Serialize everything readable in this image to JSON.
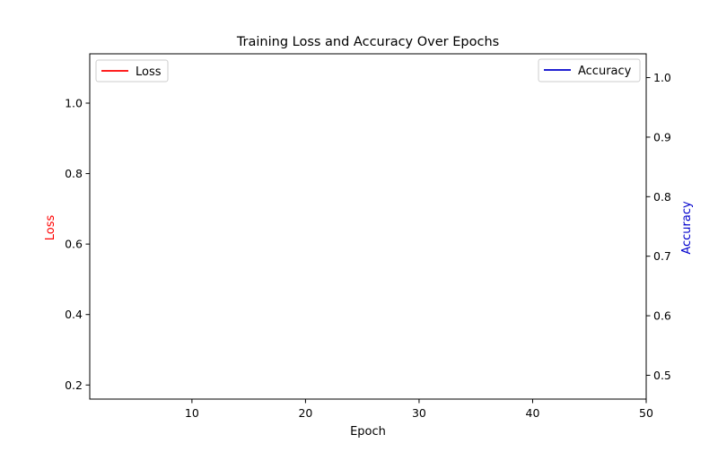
{
  "chart_data": {
    "type": "line",
    "title": "Training Loss and Accuracy Over Epochs",
    "xlabel": "Epoch",
    "xlim": [
      1,
      50
    ],
    "xticks": [
      10,
      20,
      30,
      40,
      50
    ],
    "left_axis": {
      "label": "Loss",
      "color": "#ff0000",
      "ylim": [
        0.16,
        1.14
      ],
      "ticks": [
        0.2,
        0.4,
        0.6,
        0.8,
        1.0
      ],
      "tick_labels": [
        "0.2",
        "0.4",
        "0.6",
        "0.8",
        "1.0"
      ]
    },
    "right_axis": {
      "label": "Accuracy",
      "color": "#0000cc",
      "ylim": [
        0.46,
        1.04
      ],
      "ticks": [
        0.5,
        0.6,
        0.7,
        0.8,
        0.9,
        1.0
      ],
      "tick_labels": [
        "0.5",
        "0.6",
        "0.7",
        "0.8",
        "0.9",
        "1.0"
      ]
    },
    "grid": false,
    "series": [
      {
        "name": "Loss",
        "axis": "left",
        "color": "#ff0000",
        "legend_position": "top-left",
        "x": [],
        "values": []
      },
      {
        "name": "Accuracy",
        "axis": "right",
        "color": "#0000cc",
        "legend_position": "top-right",
        "x": [],
        "values": []
      }
    ]
  }
}
